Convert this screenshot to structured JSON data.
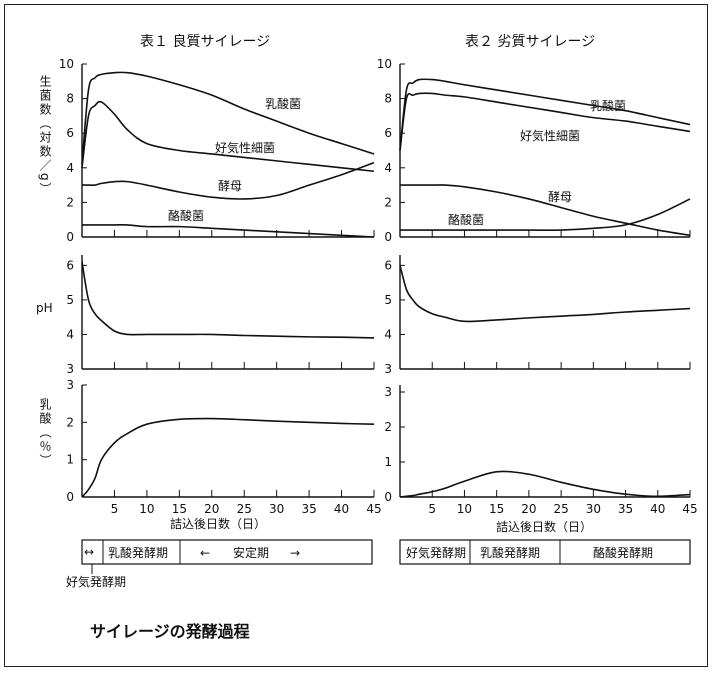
{
  "caption": "サイレージの発酵過程",
  "chart_data": [
    {
      "type": "line",
      "title": "表１ 良質サイレージ",
      "x": [
        0,
        1,
        2,
        3,
        5,
        7,
        10,
        15,
        20,
        25,
        30,
        35,
        40,
        45
      ],
      "xlim": [
        0,
        45
      ],
      "xticks": [
        5,
        10,
        15,
        20,
        25,
        30,
        35,
        40,
        45
      ],
      "xlabel": "詰込後日数（日）",
      "panels": [
        {
          "ylabel": "生菌数（対数／g）",
          "ylim": [
            0,
            10
          ],
          "yticks": [
            0,
            2,
            4,
            6,
            8,
            10
          ],
          "series": [
            {
              "name": "乳酸菌",
              "values": [
                4.2,
                8.5,
                9.2,
                9.4,
                9.5,
                9.5,
                9.3,
                8.8,
                8.2,
                7.4,
                6.7,
                6.0,
                5.4,
                4.8
              ]
            },
            {
              "name": "好気性細菌",
              "values": [
                4.0,
                7.0,
                7.6,
                7.8,
                7.1,
                6.2,
                5.4,
                5.0,
                4.8,
                4.6,
                4.4,
                4.2,
                4.0,
                3.8
              ]
            },
            {
              "name": "酵母",
              "values": [
                3.0,
                3.0,
                3.0,
                3.1,
                3.2,
                3.2,
                3.0,
                2.6,
                2.3,
                2.2,
                2.4,
                3.0,
                3.6,
                4.3
              ]
            },
            {
              "name": "酪酸菌",
              "values": [
                0.7,
                0.7,
                0.7,
                0.7,
                0.7,
                0.7,
                0.6,
                0.6,
                0.5,
                0.4,
                0.3,
                0.2,
                0.1,
                0.0
              ]
            }
          ]
        },
        {
          "ylabel": "pH",
          "ylim": [
            3,
            6.3
          ],
          "yticks": [
            3,
            4,
            5,
            6
          ],
          "series": [
            {
              "name": "",
              "values": [
                6.1,
                5.0,
                4.6,
                4.4,
                4.1,
                4.0,
                4.0,
                4.0,
                4.0,
                3.97,
                3.95,
                3.93,
                3.92,
                3.9
              ]
            }
          ]
        },
        {
          "ylabel": "乳酸（％）",
          "ylim": [
            0,
            3
          ],
          "yticks": [
            0,
            1,
            2,
            3
          ],
          "series": [
            {
              "name": "",
              "values": [
                0,
                0.2,
                0.5,
                1.0,
                1.45,
                1.7,
                1.95,
                2.08,
                2.1,
                2.07,
                2.03,
                2.0,
                1.97,
                1.95
              ]
            }
          ]
        }
      ],
      "phases": [
        {
          "label": "乳酸発酵期"
        },
        {
          "label": "安定期"
        }
      ],
      "phase_note": "好気発酵期"
    },
    {
      "type": "line",
      "title": "表２ 劣質サイレージ",
      "x": [
        0,
        1,
        2,
        3,
        5,
        7,
        10,
        15,
        20,
        25,
        30,
        35,
        40,
        45
      ],
      "xlim": [
        0,
        45
      ],
      "xticks": [
        5,
        10,
        15,
        20,
        25,
        30,
        35,
        40,
        45
      ],
      "xlabel": "詰込後日数（日）",
      "panels": [
        {
          "ylim": [
            0,
            10
          ],
          "yticks": [
            0,
            2,
            4,
            6,
            8,
            10
          ],
          "series": [
            {
              "name": "乳酸菌",
              "values": [
                5.0,
                8.5,
                8.9,
                9.1,
                9.1,
                9.0,
                8.8,
                8.5,
                8.2,
                7.9,
                7.6,
                7.3,
                6.9,
                6.5
              ]
            },
            {
              "name": "好気性細菌",
              "values": [
                5.0,
                8.0,
                8.2,
                8.3,
                8.3,
                8.2,
                8.1,
                7.8,
                7.5,
                7.2,
                6.9,
                6.7,
                6.4,
                6.1
              ]
            },
            {
              "name": "酵母",
              "values": [
                3.0,
                3.0,
                3.0,
                3.0,
                3.0,
                3.0,
                2.9,
                2.6,
                2.2,
                1.7,
                1.2,
                0.8,
                0.4,
                0.1
              ]
            },
            {
              "name": "酪酸菌",
              "values": [
                0.4,
                0.4,
                0.4,
                0.4,
                0.4,
                0.4,
                0.4,
                0.4,
                0.4,
                0.4,
                0.5,
                0.7,
                1.3,
                2.2
              ]
            }
          ]
        },
        {
          "ylim": [
            3,
            6.3
          ],
          "yticks": [
            3,
            4,
            5,
            6
          ],
          "series": [
            {
              "name": "",
              "values": [
                6.0,
                5.3,
                5.0,
                4.8,
                4.6,
                4.5,
                4.38,
                4.42,
                4.48,
                4.53,
                4.58,
                4.65,
                4.7,
                4.75
              ]
            }
          ]
        },
        {
          "ylim": [
            0,
            3.2
          ],
          "yticks": [
            0,
            1,
            2,
            3
          ],
          "series": [
            {
              "name": "",
              "values": [
                0,
                0.02,
                0.04,
                0.08,
                0.15,
                0.25,
                0.45,
                0.72,
                0.65,
                0.42,
                0.22,
                0.08,
                0.02,
                0.07
              ]
            }
          ]
        }
      ],
      "phases": [
        {
          "label": "好気発酵期"
        },
        {
          "label": "乳酸発酵期"
        },
        {
          "label": "酪酸発酵期"
        }
      ]
    }
  ]
}
